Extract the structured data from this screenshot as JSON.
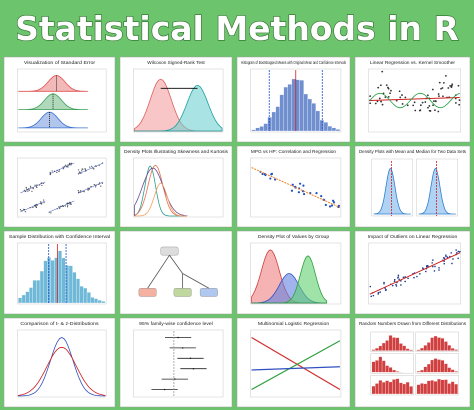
{
  "header": {
    "title": "Statistical Methods in R"
  },
  "panels": [
    {
      "title": "Visualization of Standard Error"
    },
    {
      "title": "Wilcoxon Signed-Rank Test"
    },
    {
      "title": "Histogram of Bootstrapped Means with Original Mean and Confidence Intervals"
    },
    {
      "title": "Linear Regression vs. Kernel Smoother"
    },
    {},
    {
      "title": "Density Plots Illustrating Skewness and Kurtosis"
    },
    {
      "title": "MPG vs HP: Correlation and Regression"
    },
    {
      "title": "Density Plots with Mean and Median for Two Data Sets"
    },
    {
      "title": "Sample Distribution with Confidence Interval"
    },
    {},
    {
      "title": "Density Plot of Values by Group"
    },
    {
      "title": "Impact of Outliers on Linear Regression"
    },
    {
      "title": "Comparison of t- & z-Distributions"
    },
    {
      "title": "95% family-wise confidence level"
    },
    {
      "title": "Multinomial Logistic Regression"
    },
    {
      "title": "Random Numbers Drawn from Different Distributions"
    }
  ]
}
